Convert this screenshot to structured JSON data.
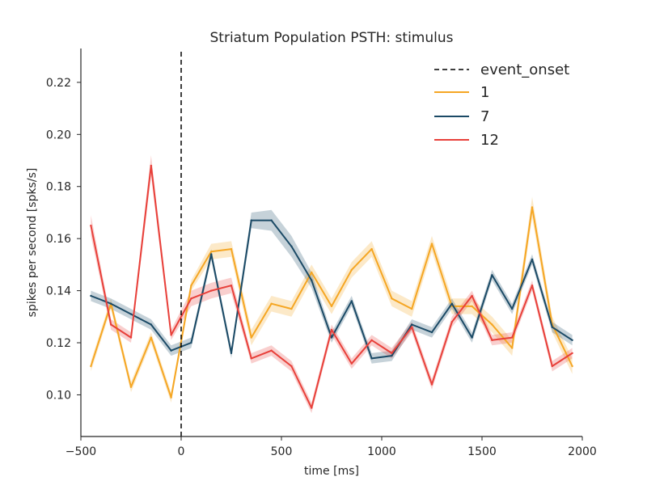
{
  "chart_data": {
    "type": "line",
    "title": "Striatum Population PSTH: stimulus",
    "xlabel": "time [ms]",
    "ylabel": "spikes per second [spks/s]",
    "xlim": [
      -500,
      2000
    ],
    "ylim": [
      0.084,
      0.233
    ],
    "xticks": [
      -500,
      0,
      500,
      1000,
      1500,
      2000
    ],
    "xtick_labels": [
      "−500",
      "0",
      "500",
      "1000",
      "1500",
      "2000"
    ],
    "yticks": [
      0.1,
      0.12,
      0.14,
      0.16,
      0.18,
      0.2,
      0.22
    ],
    "ytick_labels": [
      "0.10",
      "0.12",
      "0.14",
      "0.16",
      "0.18",
      "0.20",
      "0.22"
    ],
    "grid": false,
    "legend_position": "top-right",
    "event_onset": {
      "name": "event_onset",
      "x": 0,
      "color": "#000000",
      "style": "dashed"
    },
    "x": [
      -450,
      -350,
      -250,
      -150,
      -50,
      50,
      150,
      250,
      350,
      450,
      550,
      650,
      750,
      850,
      950,
      1050,
      1150,
      1250,
      1350,
      1450,
      1550,
      1650,
      1750,
      1850,
      1950
    ],
    "series": [
      {
        "name": "1",
        "color": "#F5A623",
        "values": [
          0.111,
          0.135,
          0.103,
          0.122,
          0.099,
          0.142,
          0.155,
          0.156,
          0.122,
          0.135,
          0.133,
          0.147,
          0.134,
          0.148,
          0.156,
          0.137,
          0.133,
          0.158,
          0.134,
          0.134,
          0.127,
          0.118,
          0.172,
          0.127,
          0.111
        ],
        "sem": [
          0.002,
          0.002,
          0.002,
          0.002,
          0.002,
          0.002,
          0.003,
          0.003,
          0.003,
          0.003,
          0.003,
          0.003,
          0.003,
          0.003,
          0.003,
          0.003,
          0.003,
          0.003,
          0.003,
          0.003,
          0.003,
          0.003,
          0.004,
          0.003,
          0.003
        ]
      },
      {
        "name": "7",
        "color": "#1B4A66",
        "values": [
          0.138,
          0.135,
          0.131,
          0.127,
          0.117,
          0.12,
          0.154,
          0.116,
          0.167,
          0.167,
          0.157,
          0.144,
          0.122,
          0.136,
          0.114,
          0.115,
          0.127,
          0.124,
          0.135,
          0.122,
          0.146,
          0.133,
          0.152,
          0.126,
          0.121
        ],
        "sem": [
          0.002,
          0.002,
          0.002,
          0.002,
          0.002,
          0.002,
          0.002,
          0.002,
          0.003,
          0.004,
          0.004,
          0.003,
          0.002,
          0.002,
          0.002,
          0.002,
          0.002,
          0.002,
          0.002,
          0.002,
          0.002,
          0.002,
          0.002,
          0.002,
          0.002
        ]
      },
      {
        "name": "12",
        "color": "#E8403A",
        "values": [
          0.165,
          0.127,
          0.122,
          0.188,
          0.123,
          0.137,
          0.14,
          0.142,
          0.114,
          0.117,
          0.111,
          0.095,
          0.125,
          0.112,
          0.121,
          0.116,
          0.126,
          0.104,
          0.128,
          0.138,
          0.121,
          0.122,
          0.142,
          0.111,
          0.116
        ],
        "sem": [
          0.004,
          0.002,
          0.002,
          0.004,
          0.002,
          0.003,
          0.003,
          0.003,
          0.002,
          0.002,
          0.002,
          0.002,
          0.002,
          0.002,
          0.002,
          0.002,
          0.002,
          0.002,
          0.002,
          0.002,
          0.002,
          0.002,
          0.002,
          0.002,
          0.002
        ]
      }
    ]
  }
}
